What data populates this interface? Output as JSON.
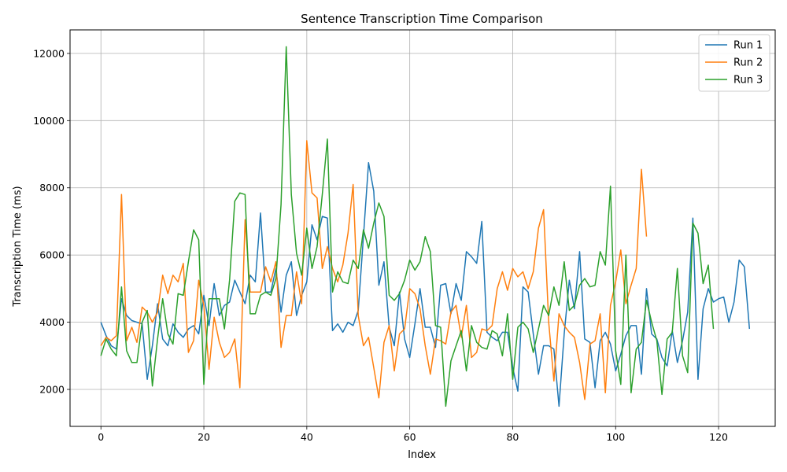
{
  "chart_data": {
    "type": "line",
    "title": "Sentence Transcription Time Comparison",
    "xlabel": "Index",
    "ylabel": "Transcription Time (ms)",
    "xlim": [
      -6,
      131
    ],
    "ylim": [
      900,
      12700
    ],
    "xticks": [
      0,
      20,
      40,
      60,
      80,
      100,
      120
    ],
    "yticks": [
      2000,
      4000,
      6000,
      8000,
      10000,
      12000
    ],
    "grid": true,
    "legend_position": "top-right",
    "series": [
      {
        "name": "Run 1",
        "color": "#1f77b4",
        "values": [
          4000,
          3600,
          3300,
          3200,
          4700,
          4200,
          4050,
          4000,
          3950,
          2300,
          3300,
          4550,
          3500,
          3300,
          3950,
          3700,
          3550,
          3800,
          3900,
          3650,
          4800,
          3900,
          5150,
          4200,
          4500,
          4600,
          5250,
          4900,
          4550,
          5400,
          5200,
          7250,
          4900,
          4900,
          5600,
          4300,
          5400,
          5800,
          4200,
          4800,
          5200,
          6900,
          6450,
          7150,
          7100,
          3750,
          3950,
          3700,
          4000,
          3900,
          4350,
          6550,
          8750,
          7900,
          5100,
          5800,
          3850,
          3300,
          4900,
          3500,
          2950,
          3950,
          5000,
          3850,
          3850,
          3250,
          5100,
          5150,
          4250,
          5150,
          4650,
          6100,
          5950,
          5750,
          7000,
          3700,
          3550,
          3450,
          3700,
          3700,
          2650,
          1950,
          5050,
          4900,
          3650,
          2450,
          3300,
          3300,
          3200,
          1500,
          3650,
          5250,
          4400,
          6100,
          3500,
          3400,
          2050,
          3450,
          3700,
          3350,
          2550,
          3050,
          3600,
          3900,
          3900,
          2450,
          5000,
          3650,
          3500,
          2950,
          2700,
          3750,
          2800,
          3450,
          4300,
          7100,
          2300,
          4400,
          5000,
          4600,
          4700,
          4750,
          4000,
          4600,
          5850,
          5650,
          3800
        ]
      },
      {
        "name": "Run 2",
        "color": "#ff7f0e",
        "values": [
          3300,
          3550,
          3450,
          3600,
          7800,
          3450,
          3850,
          3400,
          4450,
          4300,
          4000,
          4300,
          5400,
          4850,
          5400,
          5200,
          5750,
          3100,
          3450,
          5250,
          4500,
          2600,
          4150,
          3400,
          2950,
          3100,
          3500,
          2050,
          7050,
          4900,
          4900,
          4900,
          5650,
          5200,
          5800,
          3250,
          4200,
          4200,
          5500,
          4550,
          9400,
          7850,
          7700,
          5600,
          6250,
          5600,
          5200,
          5700,
          6650,
          8100,
          4200,
          3300,
          3550,
          2650,
          1750,
          3400,
          3900,
          2550,
          3650,
          3800,
          5000,
          4850,
          4400,
          3300,
          2450,
          3500,
          3450,
          3350,
          4300,
          4500,
          3550,
          4500,
          2950,
          3100,
          3800,
          3750,
          3900,
          5000,
          5500,
          4950,
          5600,
          5350,
          5500,
          5000,
          5500,
          6800,
          7350,
          4000,
          2250,
          4250,
          3900,
          3700,
          3550,
          2800,
          1700,
          3350,
          3450,
          4250,
          1900,
          4500,
          5200,
          6150,
          4550,
          5100,
          5600,
          8550,
          6550
        ]
      },
      {
        "name": "Run 3",
        "color": "#2ca02c",
        "values": [
          3000,
          3500,
          3200,
          3000,
          5050,
          3150,
          2800,
          2800,
          4000,
          4350,
          2100,
          3500,
          4700,
          3650,
          3350,
          4850,
          4800,
          5800,
          6750,
          6450,
          2150,
          4700,
          4700,
          4700,
          3800,
          5250,
          7600,
          7850,
          7800,
          4250,
          4250,
          4800,
          4900,
          4800,
          5300,
          7500,
          12200,
          7800,
          6050,
          5400,
          6800,
          5600,
          6250,
          7800,
          9450,
          4900,
          5500,
          5200,
          5150,
          5850,
          5600,
          6750,
          6200,
          6950,
          7550,
          7150,
          4800,
          4650,
          4850,
          5250,
          5850,
          5550,
          5800,
          6550,
          6100,
          3900,
          3850,
          1500,
          2850,
          3300,
          3750,
          2550,
          3900,
          3400,
          3250,
          3200,
          3750,
          3650,
          3000,
          4250,
          2300,
          3850,
          4000,
          3800,
          3100,
          3800,
          4500,
          4200,
          5050,
          4500,
          5800,
          4350,
          4500,
          5100,
          5300,
          5050,
          5100,
          6100,
          5700,
          8050,
          3150,
          2150,
          6000,
          1900,
          3200,
          3400,
          4650,
          4000,
          3450,
          1850,
          3500,
          3700,
          5600,
          3000,
          2500,
          6950,
          6650,
          5150,
          5700,
          3800
        ]
      }
    ]
  }
}
